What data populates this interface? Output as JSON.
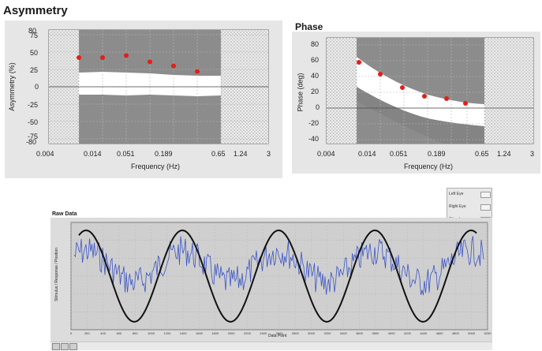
{
  "asymmetry": {
    "title": "Asymmetry",
    "ylabel": "Asymmetry (%)",
    "xlabel": "Frequency (Hz)",
    "yticks": [
      "80",
      "75",
      "50",
      "25",
      "0",
      "-25",
      "-50",
      "-75",
      "-80"
    ],
    "xticks": [
      "0.004",
      "0.014",
      "0.051",
      "0.189",
      "0.65",
      "1.24",
      "3"
    ],
    "points_y": [
      42,
      42,
      45,
      36,
      30,
      22
    ],
    "upper_band": [
      20,
      21,
      20,
      18,
      16,
      16
    ],
    "lower_band": [
      -8,
      -9,
      -8,
      -9,
      -10,
      -11
    ]
  },
  "phase": {
    "title": "Phase",
    "ylabel": "Phase (deg)",
    "xlabel": "Frequency (Hz)",
    "yticks": [
      "80",
      "60",
      "40",
      "20",
      "0",
      "-20",
      "-40"
    ],
    "xticks": [
      "0.004",
      "0.014",
      "0.051",
      "0.189",
      "0.65",
      "1.24",
      "3"
    ],
    "points_y": [
      58,
      43,
      26,
      15,
      12,
      6
    ]
  },
  "raw": {
    "title": "Raw Data",
    "ylabel": "Stimulus / Response / Position",
    "xlabel": "Data Point",
    "xticks": [
      "0",
      "200",
      "400",
      "600",
      "800",
      "1000",
      "1200",
      "1400",
      "1600",
      "1800",
      "2000",
      "2200",
      "2400",
      "2600",
      "2800",
      "3000",
      "3200",
      "3400",
      "3600",
      "3800",
      "4000",
      "4200",
      "4400",
      "4600",
      "4800",
      "5000",
      "5200"
    ],
    "legend": [
      {
        "label": "Left Eye"
      },
      {
        "label": "Right Eye"
      },
      {
        "label": "Stimulus"
      }
    ]
  },
  "colors": {
    "plot_bg": "#8c8c8c",
    "band": "#ffffff",
    "point": "#e0201a",
    "frame": "#d6d6d6",
    "stimulus": "#111111",
    "response": "#3b55c8"
  },
  "icons": [
    "zoom-icon",
    "pan-icon",
    "cursor-icon"
  ]
}
